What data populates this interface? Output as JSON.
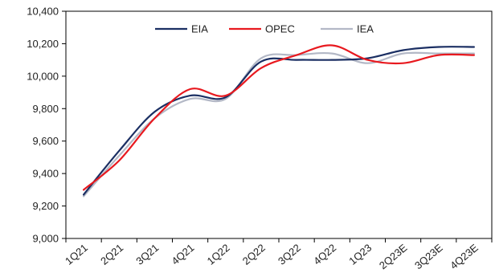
{
  "chart_data": {
    "type": "line",
    "title": "",
    "xlabel": "",
    "ylabel": "",
    "categories": [
      "1Q21",
      "2Q21",
      "3Q21",
      "4Q21",
      "1Q22",
      "2Q22",
      "3Q22",
      "4Q22",
      "1Q23",
      "2Q23E",
      "3Q23E",
      "4Q23E"
    ],
    "ylim": [
      9000,
      10400
    ],
    "yticks": [
      9000,
      9200,
      9400,
      9600,
      9800,
      10000,
      10200,
      10400
    ],
    "ytick_labels": [
      "9,000",
      "9,200",
      "9,400",
      "9,600",
      "9,800",
      "10,000",
      "10,200",
      "10,400"
    ],
    "grid": false,
    "legend_position": "top",
    "series": [
      {
        "name": "EIA",
        "color": "#1b2f63",
        "values": [
          9270,
          9540,
          9780,
          9880,
          9870,
          10090,
          10100,
          10100,
          10110,
          10160,
          10180,
          10180
        ]
      },
      {
        "name": "OPEC",
        "color": "#e8191f",
        "values": [
          9300,
          9480,
          9740,
          9920,
          9880,
          10050,
          10130,
          10190,
          10100,
          10080,
          10130,
          10130
        ]
      },
      {
        "name": "IEA",
        "color": "#b3b8c6",
        "values": [
          9260,
          9510,
          9740,
          9860,
          9860,
          10110,
          10130,
          10140,
          10080,
          10140,
          10140,
          10140
        ]
      }
    ]
  }
}
